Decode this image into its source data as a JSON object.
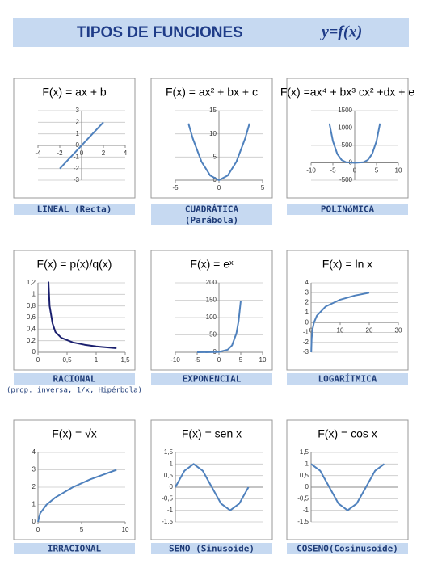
{
  "header": {
    "title": "TIPOS DE FUNCIONES",
    "formula": "y=f(x)"
  },
  "chart_data": [
    {
      "type": "line",
      "title": "F(x) = ax + b",
      "caption": "LINEAL (Recta)",
      "color": "#4f81bd",
      "grid": true,
      "x": [
        -2,
        2
      ],
      "y": [
        -2,
        2
      ],
      "xlim": [
        -4,
        4
      ],
      "xticks": [
        -4,
        -2,
        0,
        2,
        4
      ],
      "ylim": [
        -3,
        3
      ],
      "yticks": [
        -3,
        -2,
        -1,
        0,
        1,
        2,
        3
      ]
    },
    {
      "type": "line",
      "title": "F(x) = ax² + bx + c",
      "caption": "CUADRÁTICA",
      "subcaption": "(Parábola)",
      "color": "#4f81bd",
      "grid": true,
      "x": [
        -3.5,
        -3,
        -2,
        -1,
        0,
        1,
        2,
        3,
        3.5
      ],
      "y": [
        12.25,
        9,
        4,
        1,
        0,
        1,
        4,
        9,
        12.25
      ],
      "xlim": [
        -5,
        5
      ],
      "xticks": [
        -5,
        0,
        5
      ],
      "ylim": [
        0,
        15
      ],
      "yticks": [
        0,
        5,
        10,
        15
      ]
    },
    {
      "type": "line",
      "title": "F(x) =ax⁴ + bx³ cx² +dx + e",
      "caption": "POLINóMICA",
      "color": "#4f81bd",
      "grid": true,
      "x": [
        -5.8,
        -5,
        -4,
        -3,
        -2,
        0,
        2,
        3,
        4,
        5,
        5.8
      ],
      "y": [
        1132,
        625,
        256,
        81,
        16,
        0,
        16,
        81,
        256,
        625,
        1132
      ],
      "xlim": [
        -10,
        10
      ],
      "xticks": [
        -10,
        -5,
        0,
        5,
        10
      ],
      "ylim": [
        -500,
        1500
      ],
      "yticks": [
        -500,
        0,
        500,
        1000,
        1500
      ]
    },
    {
      "type": "line",
      "title": "F(x) = p(x)/q(x)",
      "caption": "RACIONAL",
      "subcaption": "(prop. inversa, 1/x, Hipérbola)",
      "color": "#1a1f6e",
      "grid": true,
      "x": [
        0.18,
        0.2,
        0.25,
        0.3,
        0.4,
        0.6,
        0.8,
        1,
        1.35
      ],
      "y": [
        1.22,
        0.8,
        0.5,
        0.35,
        0.25,
        0.17,
        0.13,
        0.1,
        0.07
      ],
      "xlim": [
        0,
        1.5
      ],
      "xticks": [
        0,
        {
          "value": 0.5,
          "label": "0,5"
        },
        1,
        {
          "value": 1.5,
          "label": "1,5"
        }
      ],
      "ylim": [
        0,
        1.2
      ],
      "yticks": [
        0,
        {
          "value": 0.2,
          "label": "0,2"
        },
        {
          "value": 0.4,
          "label": "0,4"
        },
        {
          "value": 0.6,
          "label": "0,6"
        },
        {
          "value": 0.8,
          "label": "0,8"
        },
        1,
        {
          "value": 1.2,
          "label": "1,2"
        }
      ]
    },
    {
      "type": "line",
      "title": "F(x) = eˣ",
      "caption": "EXPONENCIAL",
      "color": "#4f81bd",
      "grid": true,
      "x": [
        -5,
        -2,
        0,
        2,
        3,
        4,
        4.5,
        5
      ],
      "y": [
        0.007,
        0.14,
        1,
        7.4,
        20.1,
        54.6,
        90,
        148.4
      ],
      "xlim": [
        -10,
        10
      ],
      "xticks": [
        -10,
        -5,
        0,
        5,
        10
      ],
      "ylim": [
        0,
        200
      ],
      "yticks": [
        0,
        50,
        100,
        150,
        200
      ]
    },
    {
      "type": "line",
      "title": "F(x) = ln x",
      "caption": "LOGARÍTMICA",
      "color": "#4f81bd",
      "grid": true,
      "x": [
        0.05,
        0.2,
        0.5,
        1,
        2,
        5,
        10,
        15,
        20
      ],
      "y": [
        -3,
        -1.61,
        -0.69,
        0,
        0.69,
        1.61,
        2.3,
        2.71,
        3
      ],
      "xlim": [
        0,
        30
      ],
      "xticks": [
        0,
        10,
        20,
        30
      ],
      "ylim": [
        -3,
        4
      ],
      "yticks": [
        -3,
        -2,
        -1,
        0,
        1,
        2,
        3,
        4
      ]
    },
    {
      "type": "line",
      "title": "F(x) = √x",
      "caption": "IRRACIONAL",
      "color": "#4f81bd",
      "grid": true,
      "x": [
        0,
        0.25,
        1,
        2,
        4,
        6,
        9
      ],
      "y": [
        0,
        0.5,
        1,
        1.41,
        2,
        2.45,
        3
      ],
      "xlim": [
        0,
        10
      ],
      "xticks": [
        0,
        5,
        10
      ],
      "ylim": [
        0,
        4
      ],
      "yticks": [
        0,
        1,
        2,
        3,
        4
      ]
    },
    {
      "type": "line",
      "title": "F(x) = sen x",
      "caption": "SENO (Sinusoide)",
      "color": "#4f81bd",
      "grid": true,
      "x": [
        0,
        0.785,
        1.571,
        2.356,
        3.142,
        3.927,
        4.712,
        5.498,
        6.283
      ],
      "y": [
        0,
        0.707,
        1,
        0.707,
        0,
        -0.707,
        -1,
        -0.707,
        0
      ],
      "xlim": [
        0,
        7.5
      ],
      "xticks": [],
      "ylim": [
        -1.5,
        1.5
      ],
      "yticks": [
        {
          "value": -1.5,
          "label": "-1,5"
        },
        -1,
        {
          "value": -0.5,
          "label": "-0,5"
        },
        0,
        {
          "value": 0.5,
          "label": "0,5"
        },
        1,
        {
          "value": 1.5,
          "label": "1,5"
        }
      ]
    },
    {
      "type": "line",
      "title": "F(x) = cos x",
      "caption": "COSENO(Cosinusoide)",
      "color": "#4f81bd",
      "grid": true,
      "x": [
        0,
        0.785,
        1.571,
        2.356,
        3.142,
        3.927,
        4.712,
        5.498,
        6.283
      ],
      "y": [
        1,
        0.707,
        0,
        -0.707,
        -1,
        -0.707,
        0,
        0.707,
        1
      ],
      "xlim": [
        0,
        7.5
      ],
      "xticks": [],
      "ylim": [
        -1.5,
        1.5
      ],
      "yticks": [
        {
          "value": -1.5,
          "label": "-1,5"
        },
        -1,
        {
          "value": -0.5,
          "label": "-0,5"
        },
        0,
        {
          "value": 0.5,
          "label": "0,5"
        },
        1,
        {
          "value": 1.5,
          "label": "1,5"
        }
      ]
    }
  ]
}
